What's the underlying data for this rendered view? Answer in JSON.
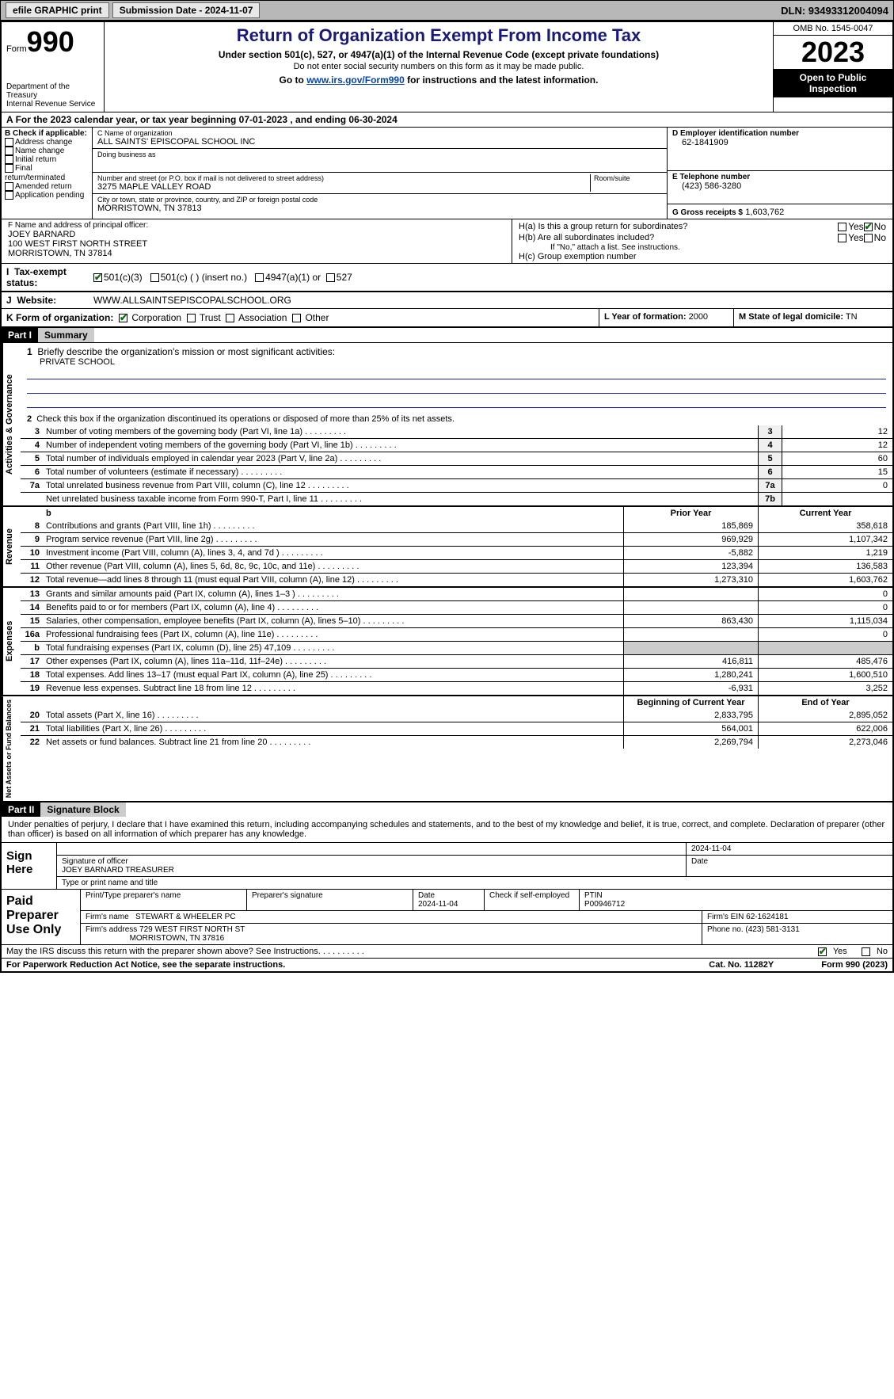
{
  "topbar": {
    "efile": "efile GRAPHIC print",
    "submission": "Submission Date - 2024-11-07",
    "dln": "DLN: 93493312004094"
  },
  "header": {
    "form_label": "Form",
    "form_num": "990",
    "dept": "Department of the Treasury",
    "irs": "Internal Revenue Service",
    "title": "Return of Organization Exempt From Income Tax",
    "subtitle": "Under section 501(c), 527, or 4947(a)(1) of the Internal Revenue Code (except private foundations)",
    "note": "Do not enter social security numbers on this form as it may be made public.",
    "instr_prefix": "Go to ",
    "instr_link": "www.irs.gov/Form990",
    "instr_suffix": " for instructions and the latest information.",
    "omb": "OMB No. 1545-0047",
    "year": "2023",
    "openpub": "Open to Public Inspection"
  },
  "rowA": "For the 2023 calendar year, or tax year beginning 07-01-2023    , and ending 06-30-2024",
  "sectionB": {
    "title": "B Check if applicable:",
    "opts": [
      "Address change",
      "Name change",
      "Initial return",
      "Final return/terminated",
      "Amended return",
      "Application pending"
    ]
  },
  "sectionC": {
    "name_label": "C Name of organization",
    "name": "ALL SAINTS' EPISCOPAL SCHOOL INC",
    "dba_label": "Doing business as",
    "dba": "",
    "addr_label": "Number and street (or P.O. box if mail is not delivered to street address)",
    "room_label": "Room/suite",
    "addr": "3275 MAPLE VALLEY ROAD",
    "city_label": "City or town, state or province, country, and ZIP or foreign postal code",
    "city": "MORRISTOWN, TN  37813"
  },
  "sectionD": {
    "label": "D Employer identification number",
    "val": "62-1841909"
  },
  "sectionE": {
    "label": "E Telephone number",
    "val": "(423) 586-3280"
  },
  "sectionG": {
    "label": "G Gross receipts $",
    "val": "1,603,762"
  },
  "sectionF": {
    "label": "F  Name and address of principal officer:",
    "name": "JOEY BARNARD",
    "addr1": "100 WEST FIRST NORTH STREET",
    "addr2": "MORRISTOWN, TN  37814"
  },
  "sectionH": {
    "ha": "H(a)  Is this a group return for subordinates?",
    "hb": "H(b)  Are all subordinates included?",
    "hb_note": "If \"No,\" attach a list. See instructions.",
    "hc": "H(c)  Group exemption number"
  },
  "yes": "Yes",
  "no": "No",
  "rowI": {
    "label": "Tax-exempt status:",
    "opt1": "501(c)(3)",
    "opt2": "501(c) (  ) (insert no.)",
    "opt3": "4947(a)(1) or",
    "opt4": "527"
  },
  "rowJ": {
    "label": "Website:",
    "val": "WWW.ALLSAINTSEPISCOPALSCHOOL.ORG"
  },
  "rowK": {
    "label": "K Form of organization:",
    "opts": [
      "Corporation",
      "Trust",
      "Association",
      "Other"
    ]
  },
  "rowL": {
    "label": "L Year of formation:",
    "val": "2000"
  },
  "rowM": {
    "label": "M State of legal domicile:",
    "val": "TN"
  },
  "partI": {
    "hdr": "Part I",
    "title": "Summary"
  },
  "summary": {
    "line1_label": "Briefly describe the organization's mission or most significant activities:",
    "line1_val": "PRIVATE SCHOOL",
    "line2": "Check this box        if the organization discontinued its operations or disposed of more than 25% of its net assets.",
    "lines_gov": [
      {
        "n": "3",
        "t": "Number of voting members of the governing body (Part VI, line 1a)",
        "box": "3",
        "v": "12"
      },
      {
        "n": "4",
        "t": "Number of independent voting members of the governing body (Part VI, line 1b)",
        "box": "4",
        "v": "12"
      },
      {
        "n": "5",
        "t": "Total number of individuals employed in calendar year 2023 (Part V, line 2a)",
        "box": "5",
        "v": "60"
      },
      {
        "n": "6",
        "t": "Total number of volunteers (estimate if necessary)",
        "box": "6",
        "v": "15"
      },
      {
        "n": "7a",
        "t": "Total unrelated business revenue from Part VIII, column (C), line 12",
        "box": "7a",
        "v": "0"
      },
      {
        "n": "",
        "t": "Net unrelated business taxable income from Form 990-T, Part I, line 11",
        "box": "7b",
        "v": ""
      }
    ],
    "col_prior": "Prior Year",
    "col_curr": "Current Year",
    "lines_rev": [
      {
        "n": "8",
        "t": "Contributions and grants (Part VIII, line 1h)",
        "p": "185,869",
        "c": "358,618"
      },
      {
        "n": "9",
        "t": "Program service revenue (Part VIII, line 2g)",
        "p": "969,929",
        "c": "1,107,342"
      },
      {
        "n": "10",
        "t": "Investment income (Part VIII, column (A), lines 3, 4, and 7d )",
        "p": "-5,882",
        "c": "1,219"
      },
      {
        "n": "11",
        "t": "Other revenue (Part VIII, column (A), lines 5, 6d, 8c, 9c, 10c, and 11e)",
        "p": "123,394",
        "c": "136,583"
      },
      {
        "n": "12",
        "t": "Total revenue—add lines 8 through 11 (must equal Part VIII, column (A), line 12)",
        "p": "1,273,310",
        "c": "1,603,762"
      }
    ],
    "lines_exp": [
      {
        "n": "13",
        "t": "Grants and similar amounts paid (Part IX, column (A), lines 1–3 )",
        "p": "",
        "c": "0"
      },
      {
        "n": "14",
        "t": "Benefits paid to or for members (Part IX, column (A), line 4)",
        "p": "",
        "c": "0"
      },
      {
        "n": "15",
        "t": "Salaries, other compensation, employee benefits (Part IX, column (A), lines 5–10)",
        "p": "863,430",
        "c": "1,115,034"
      },
      {
        "n": "16a",
        "t": "Professional fundraising fees (Part IX, column (A), line 11e)",
        "p": "",
        "c": "0"
      },
      {
        "n": "b",
        "t": "Total fundraising expenses (Part IX, column (D), line 25) 47,109",
        "p": "shade",
        "c": "shade"
      },
      {
        "n": "17",
        "t": "Other expenses (Part IX, column (A), lines 11a–11d, 11f–24e)",
        "p": "416,811",
        "c": "485,476"
      },
      {
        "n": "18",
        "t": "Total expenses. Add lines 13–17 (must equal Part IX, column (A), line 25)",
        "p": "1,280,241",
        "c": "1,600,510"
      },
      {
        "n": "19",
        "t": "Revenue less expenses. Subtract line 18 from line 12",
        "p": "-6,931",
        "c": "3,252"
      }
    ],
    "col_begin": "Beginning of Current Year",
    "col_end": "End of Year",
    "lines_net": [
      {
        "n": "20",
        "t": "Total assets (Part X, line 16)",
        "p": "2,833,795",
        "c": "2,895,052"
      },
      {
        "n": "21",
        "t": "Total liabilities (Part X, line 26)",
        "p": "564,001",
        "c": "622,006"
      },
      {
        "n": "22",
        "t": "Net assets or fund balances. Subtract line 21 from line 20",
        "p": "2,269,794",
        "c": "2,273,046"
      }
    ],
    "vtabs": {
      "gov": "Activities & Governance",
      "rev": "Revenue",
      "exp": "Expenses",
      "net": "Net Assets or Fund Balances"
    }
  },
  "partII": {
    "hdr": "Part II",
    "title": "Signature Block"
  },
  "sig": {
    "decl": "Under penalties of perjury, I declare that I have examined this return, including accompanying schedules and statements, and to the best of my knowledge and belief, it is true, correct, and complete. Declaration of preparer (other than officer) is based on all information of which preparer has any knowledge.",
    "sign_here": "Sign Here",
    "date1": "2024-11-04",
    "officer_sig_label": "Signature of officer",
    "officer": "JOEY BARNARD  TREASURER",
    "type_label": "Type or print name and title",
    "date_label": "Date",
    "paid": "Paid Preparer Use Only",
    "prep_name_label": "Print/Type preparer's name",
    "prep_sig_label": "Preparer's signature",
    "prep_date": "2024-11-04",
    "self_emp": "Check        if self-employed",
    "ptin_label": "PTIN",
    "ptin": "P00946712",
    "firm_name_label": "Firm's name",
    "firm_name": "STEWART & WHEELER PC",
    "firm_ein_label": "Firm's EIN",
    "firm_ein": "62-1624181",
    "firm_addr_label": "Firm's address",
    "firm_addr1": "729 WEST FIRST NORTH ST",
    "firm_addr2": "MORRISTOWN, TN  37816",
    "phone_label": "Phone no.",
    "phone": "(423) 581-3131"
  },
  "footer": {
    "discuss": "May the IRS discuss this return with the preparer shown above? See Instructions.",
    "paperwork": "For Paperwork Reduction Act Notice, see the separate instructions.",
    "cat": "Cat. No. 11282Y",
    "form": "Form 990 (2023)"
  }
}
